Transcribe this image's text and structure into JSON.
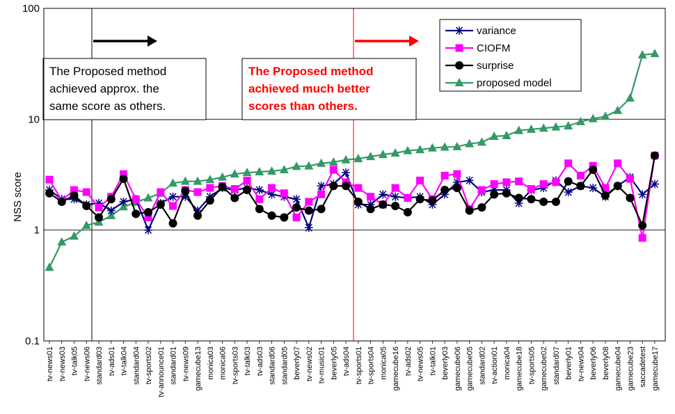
{
  "chart_data": {
    "type": "line",
    "ylabel": "NSS score",
    "yscale": "log",
    "ylim": [
      0.1,
      100
    ],
    "yticks": [
      "100",
      "10",
      "1",
      "0.1"
    ],
    "grid": true,
    "legend_position": "top-right",
    "categories": [
      "tv-news01",
      "tv-news03",
      "tv-talk05",
      "tv-news06",
      "standard03",
      "tv-ads01",
      "tv-talk04",
      "standard04",
      "tv-sports02",
      "tv-announce01",
      "standard01",
      "tv-news09",
      "gamecube13",
      "monica03",
      "monica06",
      "tv-sports03",
      "tv-talk03",
      "tv-ads03",
      "standard06",
      "standard05",
      "beverly07",
      "tv-news02",
      "tv-music01",
      "beverly05",
      "tv-ads04",
      "tv-sports01",
      "tv-sports04",
      "monica05",
      "gamecube16",
      "tv-ads02",
      "tv-news05",
      "tv-talk01",
      "beverly03",
      "gamecube06",
      "gamecube05",
      "standard02",
      "tv-action01",
      "monica04",
      "gamecube18",
      "tv-sports05",
      "gamecube02",
      "standard07",
      "beverly01",
      "tv-news04",
      "beverly06",
      "beverly08",
      "gamecube04",
      "gamecube23",
      "saccadetest",
      "gamecube17"
    ],
    "series": [
      {
        "name": "variance",
        "color": "#000080",
        "marker": "asterisk",
        "values": [
          2.3,
          1.9,
          1.9,
          1.7,
          1.75,
          1.5,
          1.8,
          1.9,
          1.0,
          1.75,
          2.0,
          2.0,
          1.5,
          2.0,
          2.4,
          2.3,
          2.4,
          2.3,
          2.1,
          2.0,
          1.9,
          1.05,
          2.5,
          2.6,
          3.3,
          1.7,
          1.7,
          2.1,
          2.0,
          1.95,
          2.0,
          1.7,
          2.1,
          2.7,
          2.8,
          2.2,
          2.3,
          2.3,
          1.75,
          2.3,
          2.4,
          2.8,
          2.2,
          2.5,
          2.4,
          2.0,
          2.5,
          3.0,
          2.1,
          2.6
        ]
      },
      {
        "name": "CIOFM",
        "color": "#ff00ff",
        "marker": "square",
        "values": [
          2.85,
          1.85,
          2.3,
          2.2,
          1.6,
          2.0,
          3.2,
          1.9,
          1.3,
          2.2,
          1.65,
          2.3,
          2.2,
          2.4,
          2.5,
          2.35,
          2.8,
          1.9,
          2.4,
          2.15,
          1.3,
          1.8,
          2.1,
          3.5,
          2.7,
          2.4,
          2.0,
          1.7,
          2.4,
          1.95,
          2.8,
          1.9,
          3.1,
          3.2,
          1.55,
          2.3,
          2.6,
          2.7,
          2.75,
          2.35,
          2.6,
          2.7,
          4.0,
          3.1,
          3.8,
          2.4,
          4.0,
          2.9,
          0.85,
          4.7
        ]
      },
      {
        "name": "surprise",
        "color": "#000000",
        "marker": "circle",
        "values": [
          2.15,
          1.8,
          2.05,
          1.65,
          1.3,
          1.9,
          2.9,
          1.4,
          1.45,
          1.7,
          1.15,
          2.25,
          1.35,
          1.85,
          2.45,
          1.95,
          2.3,
          1.55,
          1.35,
          1.3,
          1.6,
          1.5,
          1.55,
          2.5,
          2.5,
          1.8,
          1.55,
          1.7,
          1.65,
          1.45,
          1.9,
          1.85,
          2.3,
          2.4,
          1.5,
          1.6,
          2.1,
          2.15,
          1.95,
          1.9,
          1.8,
          1.8,
          2.75,
          2.5,
          3.5,
          2.05,
          2.5,
          1.95,
          1.1,
          4.7
        ]
      },
      {
        "name": "proposed model",
        "color": "#339966",
        "marker": "triangle",
        "values": [
          0.46,
          0.78,
          0.88,
          1.1,
          1.18,
          1.35,
          1.62,
          1.78,
          1.95,
          2.15,
          2.65,
          2.75,
          2.75,
          2.85,
          3.0,
          3.2,
          3.3,
          3.35,
          3.4,
          3.5,
          3.75,
          3.78,
          4.0,
          4.1,
          4.3,
          4.4,
          4.6,
          4.8,
          4.95,
          5.2,
          5.3,
          5.5,
          5.6,
          5.65,
          6.0,
          6.2,
          7.0,
          7.1,
          7.9,
          8.1,
          8.3,
          8.5,
          8.7,
          9.5,
          10.1,
          10.6,
          12.0,
          15.5,
          38.0,
          39.0
        ]
      }
    ],
    "annotations": [
      {
        "text_lines": [
          "The Proposed method",
          "achieved approx. the",
          "same score as others."
        ],
        "color": "#000000",
        "vline_color": "#000000",
        "arrow_color": "#000000"
      },
      {
        "text_lines": [
          "The Proposed method",
          "achieved much better",
          "scores than others."
        ],
        "color": "#ff0000",
        "vline_color": "#ff0000",
        "arrow_color": "#ff0000"
      }
    ]
  }
}
